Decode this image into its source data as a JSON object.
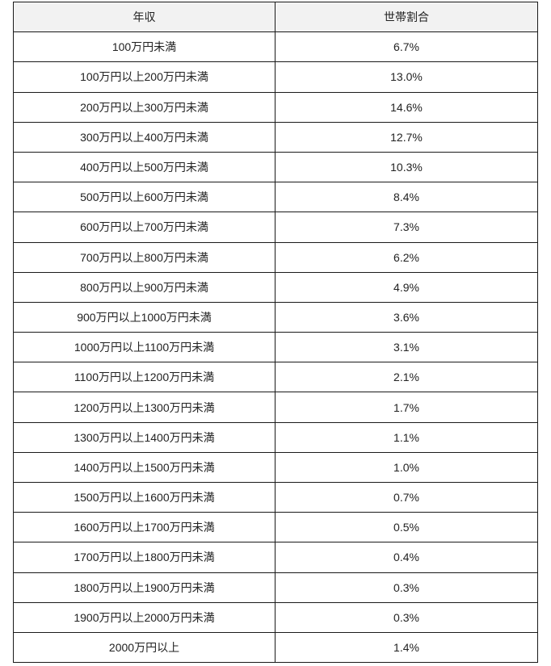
{
  "table": {
    "headers": [
      "年収",
      "世帯割合"
    ],
    "rows": [
      [
        "100万円未満",
        "6.7%"
      ],
      [
        "100万円以上200万円未満",
        "13.0%"
      ],
      [
        "200万円以上300万円未満",
        "14.6%"
      ],
      [
        "300万円以上400万円未満",
        "12.7%"
      ],
      [
        "400万円以上500万円未満",
        "10.3%"
      ],
      [
        "500万円以上600万円未満",
        "8.4%"
      ],
      [
        "600万円以上700万円未満",
        "7.3%"
      ],
      [
        "700万円以上800万円未満",
        "6.2%"
      ],
      [
        "800万円以上900万円未満",
        "4.9%"
      ],
      [
        "900万円以上1000万円未満",
        "3.6%"
      ],
      [
        "1000万円以上1100万円未満",
        "3.1%"
      ],
      [
        "1100万円以上1200万円未満",
        "2.1%"
      ],
      [
        "1200万円以上1300万円未満",
        "1.7%"
      ],
      [
        "1300万円以上1400万円未満",
        "1.1%"
      ],
      [
        "1400万円以上1500万円未満",
        "1.0%"
      ],
      [
        "1500万円以上1600万円未満",
        "0.7%"
      ],
      [
        "1600万円以上1700万円未満",
        "0.5%"
      ],
      [
        "1700万円以上1800万円未満",
        "0.4%"
      ],
      [
        "1800万円以上1900万円未満",
        "0.3%"
      ],
      [
        "1900万円以上2000万円未満",
        "0.3%"
      ],
      [
        "2000万円以上",
        "1.4%"
      ]
    ]
  },
  "colors": {
    "header_bg": "#f2f2f2",
    "border": "#1a1a1a"
  }
}
